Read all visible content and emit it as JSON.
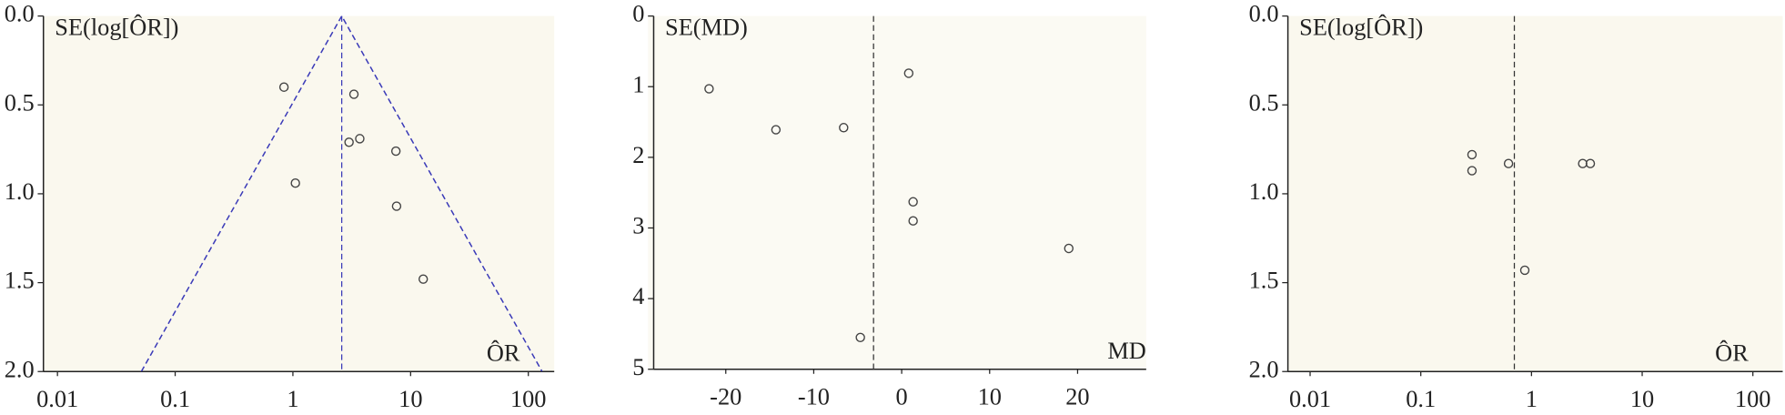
{
  "chart_data": [
    {
      "type": "scatter",
      "y_label": "SE(log[ÔR])",
      "x_label": "ÔR",
      "log_x": true,
      "y_inverted": true,
      "x": [
        0.84,
        1.05,
        3.3,
        3.0,
        3.7,
        7.5,
        7.6,
        12.8
      ],
      "values": [
        0.4,
        0.94,
        0.44,
        0.71,
        0.69,
        0.76,
        1.07,
        1.48
      ],
      "color": "#444444",
      "reference_line": 2.6,
      "funnel": true,
      "funnel_color": "#3a3ab8",
      "xlim": [
        0.0076,
        166
      ],
      "ylim": [
        0,
        2
      ],
      "xticks": [
        0.01,
        0.1,
        1,
        10,
        100
      ],
      "yticks": [
        {
          "value": 0,
          "label": "0.0"
        },
        {
          "value": 0.5,
          "label": "0.5"
        },
        {
          "value": 1,
          "label": "1.0"
        },
        {
          "value": 1.5,
          "label": "1.5"
        },
        {
          "value": 2,
          "label": "2.0"
        }
      ]
    },
    {
      "type": "scatter",
      "y_label": "SE(MD)",
      "x_label": "MD",
      "log_x": false,
      "y_inverted": true,
      "x": [
        -21.9,
        -14.3,
        -6.6,
        0.8,
        1.3,
        1.3,
        19.0,
        -4.7
      ],
      "values": [
        1.03,
        1.61,
        1.58,
        0.81,
        2.63,
        2.9,
        3.29,
        4.55
      ],
      "color": "#444444",
      "reference_line": -3.2,
      "funnel": false,
      "xlim": [
        -28.2,
        27.8
      ],
      "ylim": [
        0,
        5
      ],
      "xticks": [
        -20,
        -10,
        0,
        10,
        20
      ],
      "yticks": [
        0,
        1,
        2,
        3,
        4,
        5
      ]
    },
    {
      "type": "scatter",
      "y_label": "SE(log[ÔR])",
      "x_label": "ÔR",
      "log_x": true,
      "y_inverted": true,
      "x": [
        0.29,
        0.29,
        0.62,
        2.9,
        3.4,
        0.87
      ],
      "values": [
        0.78,
        0.87,
        0.83,
        0.83,
        0.83,
        1.43
      ],
      "color": "#444444",
      "reference_line": 0.7,
      "funnel": false,
      "xlim": [
        0.0063,
        186
      ],
      "ylim": [
        0,
        2
      ],
      "xticks": [
        0.01,
        0.1,
        1,
        10,
        100
      ],
      "yticks": [
        {
          "value": 0,
          "label": "0.0"
        },
        {
          "value": 0.5,
          "label": "0.5"
        },
        {
          "value": 1,
          "label": "1.0"
        },
        {
          "value": 1.5,
          "label": "1.5"
        },
        {
          "value": 2,
          "label": "2.0"
        }
      ]
    }
  ]
}
